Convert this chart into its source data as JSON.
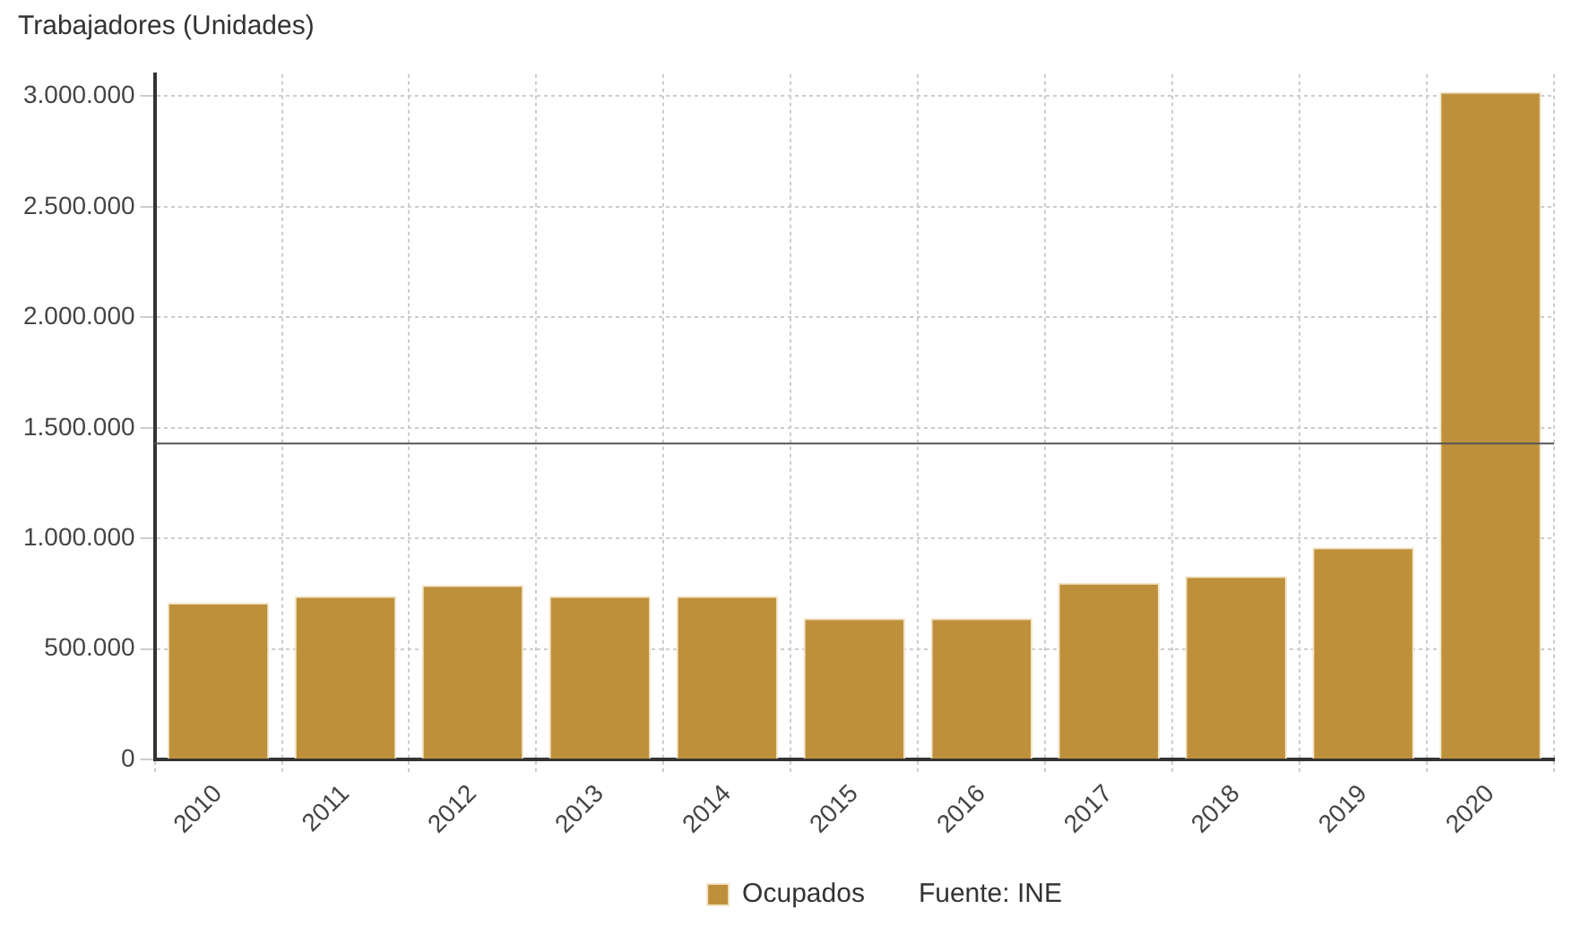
{
  "chart_data": {
    "type": "bar",
    "ylabel": "Trabajadores (Unidades)",
    "categories": [
      "2010",
      "2011",
      "2012",
      "2013",
      "2014",
      "2015",
      "2016",
      "2017",
      "2018",
      "2019",
      "2020"
    ],
    "series": [
      {
        "name": "Ocupados",
        "color": "#bf903c",
        "values": [
          710000,
          740000,
          790000,
          740000,
          740000,
          640000,
          640000,
          800000,
          830000,
          960000,
          3020000
        ]
      }
    ],
    "ylim": [
      0,
      3100000
    ],
    "yticks": [
      {
        "value": 0,
        "label": "0"
      },
      {
        "value": 500000,
        "label": "500.000"
      },
      {
        "value": 1000000,
        "label": "1.000.000"
      },
      {
        "value": 1500000,
        "label": "1.500.000"
      },
      {
        "value": 2000000,
        "label": "2.000.000"
      },
      {
        "value": 2500000,
        "label": "2.500.000"
      },
      {
        "value": 3000000,
        "label": "3.000.000"
      }
    ],
    "ref_lines": [
      {
        "axis": "y",
        "value": 1430000,
        "color": "#555555"
      }
    ],
    "grid": true,
    "legend": "bottom",
    "annotations": [
      "Fuente: INE"
    ]
  }
}
